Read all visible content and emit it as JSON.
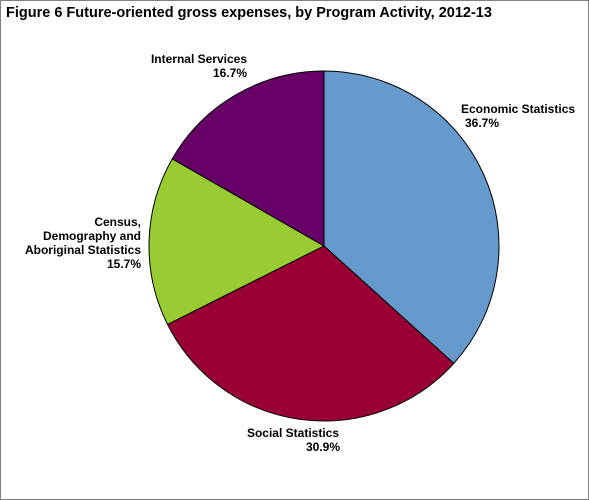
{
  "chart_data": {
    "type": "pie",
    "title": "Figure 6  Future-oriented gross expenses, by Program Activity, 2012-13",
    "slices": [
      {
        "label_lines": [
          "Economic Statistics"
        ],
        "value": 36.7,
        "value_label": "36.7%",
        "color": "#6699cc"
      },
      {
        "label_lines": [
          "Social Statistics"
        ],
        "value": 30.9,
        "value_label": "30.9%",
        "color": "#990033"
      },
      {
        "label_lines": [
          "Census,",
          "Demography and",
          "Aboriginal Statistics"
        ],
        "value": 15.7,
        "value_label": "15.7%",
        "color": "#99cc33"
      },
      {
        "label_lines": [
          "Internal Services"
        ],
        "value": 16.7,
        "value_label": "16.7%",
        "color": "#660066"
      }
    ]
  }
}
